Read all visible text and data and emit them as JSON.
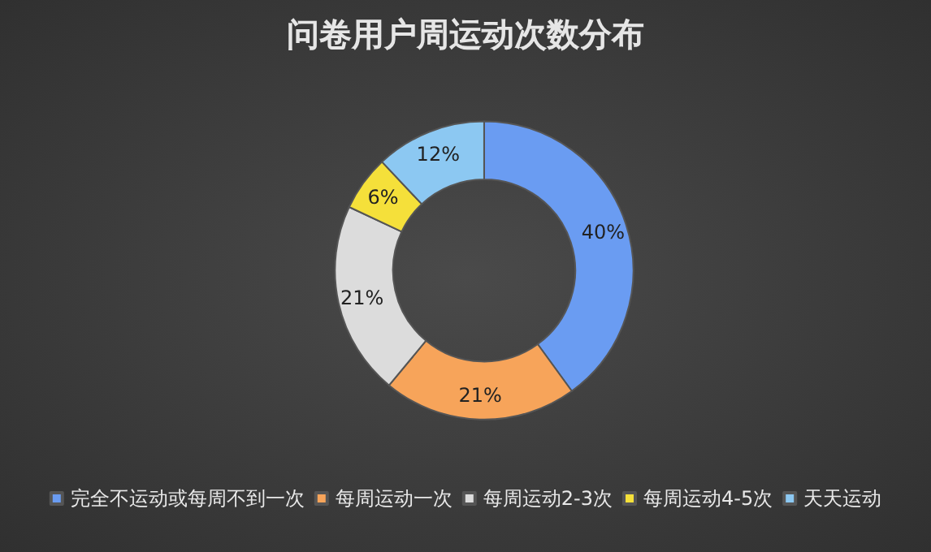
{
  "chart_data": {
    "type": "donut",
    "title": "问卷用户周运动次数分布",
    "categories": [
      "完全不运动或每周不到一次",
      "每周运动一次",
      "每周运动2-3次",
      "每周运动4-5次",
      "天天运动"
    ],
    "values": [
      40,
      21,
      21,
      6,
      12
    ],
    "value_labels": [
      "40%",
      "21%",
      "21%",
      "6%",
      "12%"
    ],
    "colors": [
      "#6a9cf2",
      "#f7a45a",
      "#dcdcdc",
      "#f5e03a",
      "#8cc8f2"
    ],
    "legend": "bottom"
  }
}
